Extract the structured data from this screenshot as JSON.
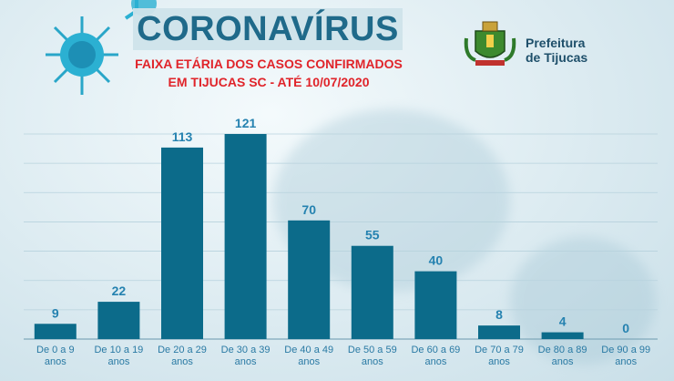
{
  "header": {
    "title": "CORONAVÍRUS",
    "subtitle_line1": "FAIXA ETÁRIA DOS CASOS CONFIRMADOS",
    "subtitle_line2": "EM TIJUCAS SC - ATÉ 10/07/2020"
  },
  "logo": {
    "line1": "Prefeitura",
    "line2": "de Tijucas",
    "icon": "coat-of-arms-icon"
  },
  "colors": {
    "bar": "#0c6b8a",
    "title": "#1f6a8a",
    "subtitle": "#e0242a",
    "label": "#2582b0"
  },
  "chart_data": {
    "type": "bar",
    "title": "FAIXA ETÁRIA DOS CASOS CONFIRMADOS",
    "categories": [
      [
        "De 0 a 9",
        "anos"
      ],
      [
        "De 10 a 19",
        "anos"
      ],
      [
        "De 20 a 29",
        "anos"
      ],
      [
        "De 30 a 39",
        "anos"
      ],
      [
        "De 40 a 49",
        "anos"
      ],
      [
        "De 50 a 59",
        "anos"
      ],
      [
        "De 60 a 69",
        "anos"
      ],
      [
        "De 70 a 79",
        "anos"
      ],
      [
        "De 80 a 89",
        "anos"
      ],
      [
        "De 90 a 99",
        "anos"
      ]
    ],
    "values": [
      9,
      22,
      113,
      121,
      70,
      55,
      40,
      8,
      4,
      0
    ],
    "ylim": [
      0,
      121
    ],
    "grid": true,
    "data_labels": true
  }
}
